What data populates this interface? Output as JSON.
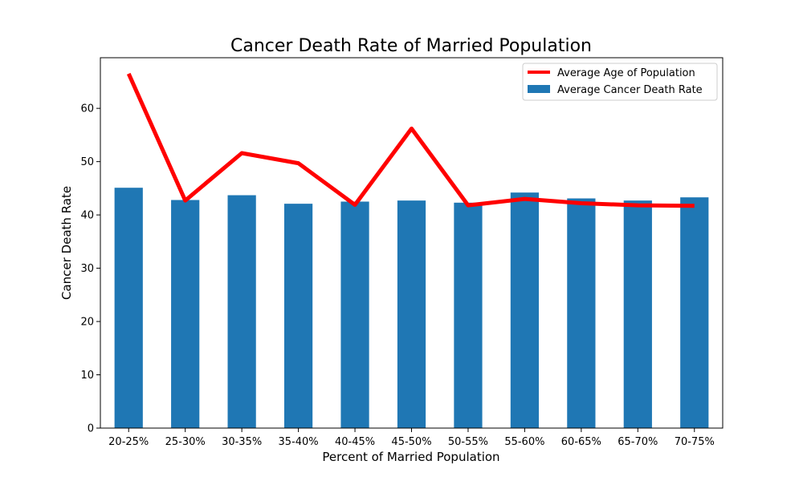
{
  "chart_data": {
    "type": "bar",
    "title": "Cancer Death Rate of Married Population",
    "xlabel": "Percent of Married Population",
    "ylabel": "Cancer Death Rate",
    "ylim": [
      0,
      69.5
    ],
    "yticks": [
      0,
      10,
      20,
      30,
      40,
      50,
      60
    ],
    "categories": [
      "20-25%",
      "25-30%",
      "30-35%",
      "35-40%",
      "40-45%",
      "45-50%",
      "50-55%",
      "55-60%",
      "60-65%",
      "65-70%",
      "70-75%"
    ],
    "series": [
      {
        "name": "Average Cancer Death Rate",
        "type": "bar",
        "color": "#1f77b4",
        "values": [
          45.1,
          42.8,
          43.7,
          42.1,
          42.5,
          42.7,
          42.3,
          44.2,
          43.1,
          42.7,
          43.3
        ]
      },
      {
        "name": "Average Age of Population",
        "type": "line",
        "color": "#ff0000",
        "values": [
          66.5,
          42.7,
          51.6,
          49.7,
          41.9,
          56.2,
          41.8,
          43.0,
          42.2,
          41.8,
          41.7
        ]
      }
    ],
    "legend_position": "top-right",
    "grid": false
  }
}
